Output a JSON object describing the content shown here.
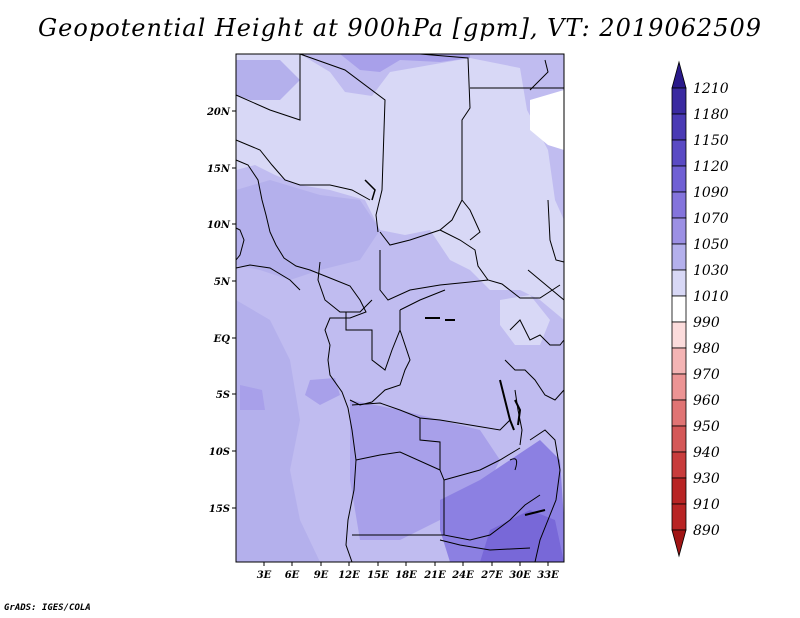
{
  "title": "Geopotential Height at 900hPa [gpm], VT: 2019062509",
  "credit": "GrADS: IGES/COLA",
  "lat_labels": [
    "20N",
    "15N",
    "10N",
    "5N",
    "EQ",
    "5S",
    "10S",
    "15S"
  ],
  "lon_labels": [
    "3E",
    "6E",
    "9E",
    "12E",
    "15E",
    "18E",
    "21E",
    "24E",
    "27E",
    "30E",
    "33E"
  ],
  "colorbar": {
    "levels": [
      "1210",
      "1180",
      "1150",
      "1120",
      "1090",
      "1070",
      "1050",
      "1030",
      "1010",
      "990",
      "980",
      "970",
      "960",
      "950",
      "940",
      "930",
      "910",
      "890"
    ],
    "colors": [
      "#2a1a8a",
      "#3a2aa0",
      "#4a3ab4",
      "#5a4ac4",
      "#7060d4",
      "#8474dc",
      "#9c90e4",
      "#b4b0ec",
      "#d8d8f6",
      "#ffffff",
      "#fcdcdc",
      "#f4b4b4",
      "#ec9494",
      "#e07474",
      "#d45858",
      "#c83c3c",
      "#b82424",
      "#a01414"
    ]
  },
  "map": {
    "lon_range": [
      0,
      34.5
    ],
    "lat_range": [
      -19.5,
      24.5
    ],
    "shading_colors": {
      "light_1010": "#d8d8f6",
      "mid_1030": "#c0bcf0",
      "mid_1050": "#a8a0ea",
      "deep_1070": "#8c80e2",
      "white_990": "#ffffff"
    }
  }
}
